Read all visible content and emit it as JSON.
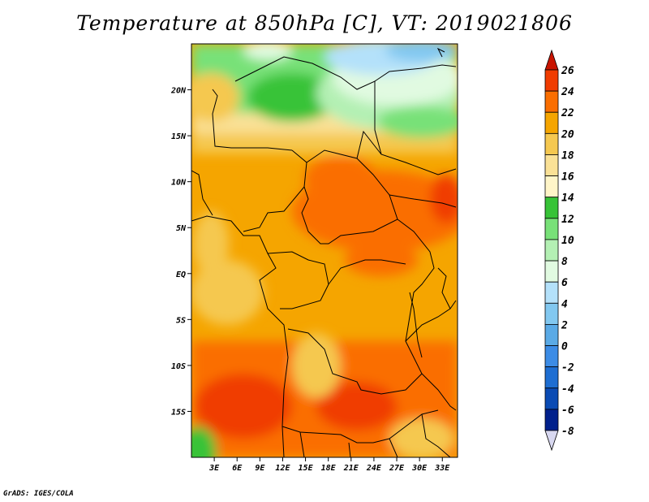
{
  "title": "Temperature at 850hPa [C], VT: 2019021806",
  "credit": "GrADS: IGES/COLA",
  "map": {
    "lat_labels": [
      "20N",
      "15N",
      "10N",
      "5N",
      "EQ",
      "5S",
      "10S",
      "15S"
    ],
    "lat_values": [
      20,
      15,
      10,
      5,
      0,
      -5,
      -10,
      -15
    ],
    "lon_labels": [
      "3E",
      "6E",
      "9E",
      "12E",
      "15E",
      "18E",
      "21E",
      "24E",
      "27E",
      "30E",
      "33E"
    ],
    "lon_values": [
      3,
      6,
      9,
      12,
      15,
      18,
      21,
      24,
      27,
      30,
      33
    ],
    "lon_range": [
      0,
      35
    ],
    "lat_range": [
      -20,
      25
    ]
  },
  "colorbar": {
    "labels": [
      "26",
      "24",
      "22",
      "20",
      "18",
      "16",
      "14",
      "12",
      "10",
      "8",
      "6",
      "4",
      "2",
      "0",
      "-2",
      "-4",
      "-6",
      "-8"
    ],
    "colors": [
      "#dc1e00",
      "#f03c00",
      "#fa6e00",
      "#f5a500",
      "#f5c850",
      "#fae196",
      "#fff5c8",
      "#37c337",
      "#78e178",
      "#b4f0b4",
      "#e1fae1",
      "#b4e1fa",
      "#82c8f0",
      "#5aaae6",
      "#3c8ce6",
      "#1e6ed2",
      "#0a4bb4",
      "#00208c",
      "#00106a"
    ],
    "over_color": "#c81400",
    "under_color": "#d8d8f0"
  },
  "chart_data": {
    "type": "heatmap",
    "title": "Temperature at 850hPa [C], VT: 2019021806",
    "variable": "Temperature at 850hPa",
    "units": "C",
    "valid_time": "2019021806",
    "x_axis": "longitude (E)",
    "y_axis": "latitude",
    "xlim": [
      0,
      35
    ],
    "ylim": [
      -20,
      25
    ],
    "x_ticks": [
      3,
      6,
      9,
      12,
      15,
      18,
      21,
      24,
      27,
      30,
      33
    ],
    "y_ticks": [
      20,
      15,
      10,
      5,
      0,
      -5,
      -10,
      -15
    ],
    "color_levels": [
      -8,
      -6,
      -4,
      -2,
      0,
      2,
      4,
      6,
      8,
      10,
      12,
      14,
      16,
      18,
      20,
      22,
      24,
      26
    ],
    "regions": [
      {
        "area": "northern Sahara (NW, near 20-25N 3-12E)",
        "value_range": [
          10,
          14
        ]
      },
      {
        "area": "north-east corner (near 22-25N 20-33E)",
        "value_range": [
          6,
          10
        ]
      },
      {
        "area": "Sahel band (15N)",
        "value_range": [
          14,
          18
        ]
      },
      {
        "area": "central Africa / CAR (5-10N 15-30E)",
        "value_range": [
          22,
          24
        ]
      },
      {
        "area": "Congo basin (equator)",
        "value_range": [
          20,
          22
        ]
      },
      {
        "area": "Angola / southern Africa (10-18S)",
        "value_range": [
          22,
          24
        ]
      },
      {
        "area": "south-west corner coast (near 20S 0-3E)",
        "value_range": [
          10,
          14
        ]
      }
    ]
  }
}
